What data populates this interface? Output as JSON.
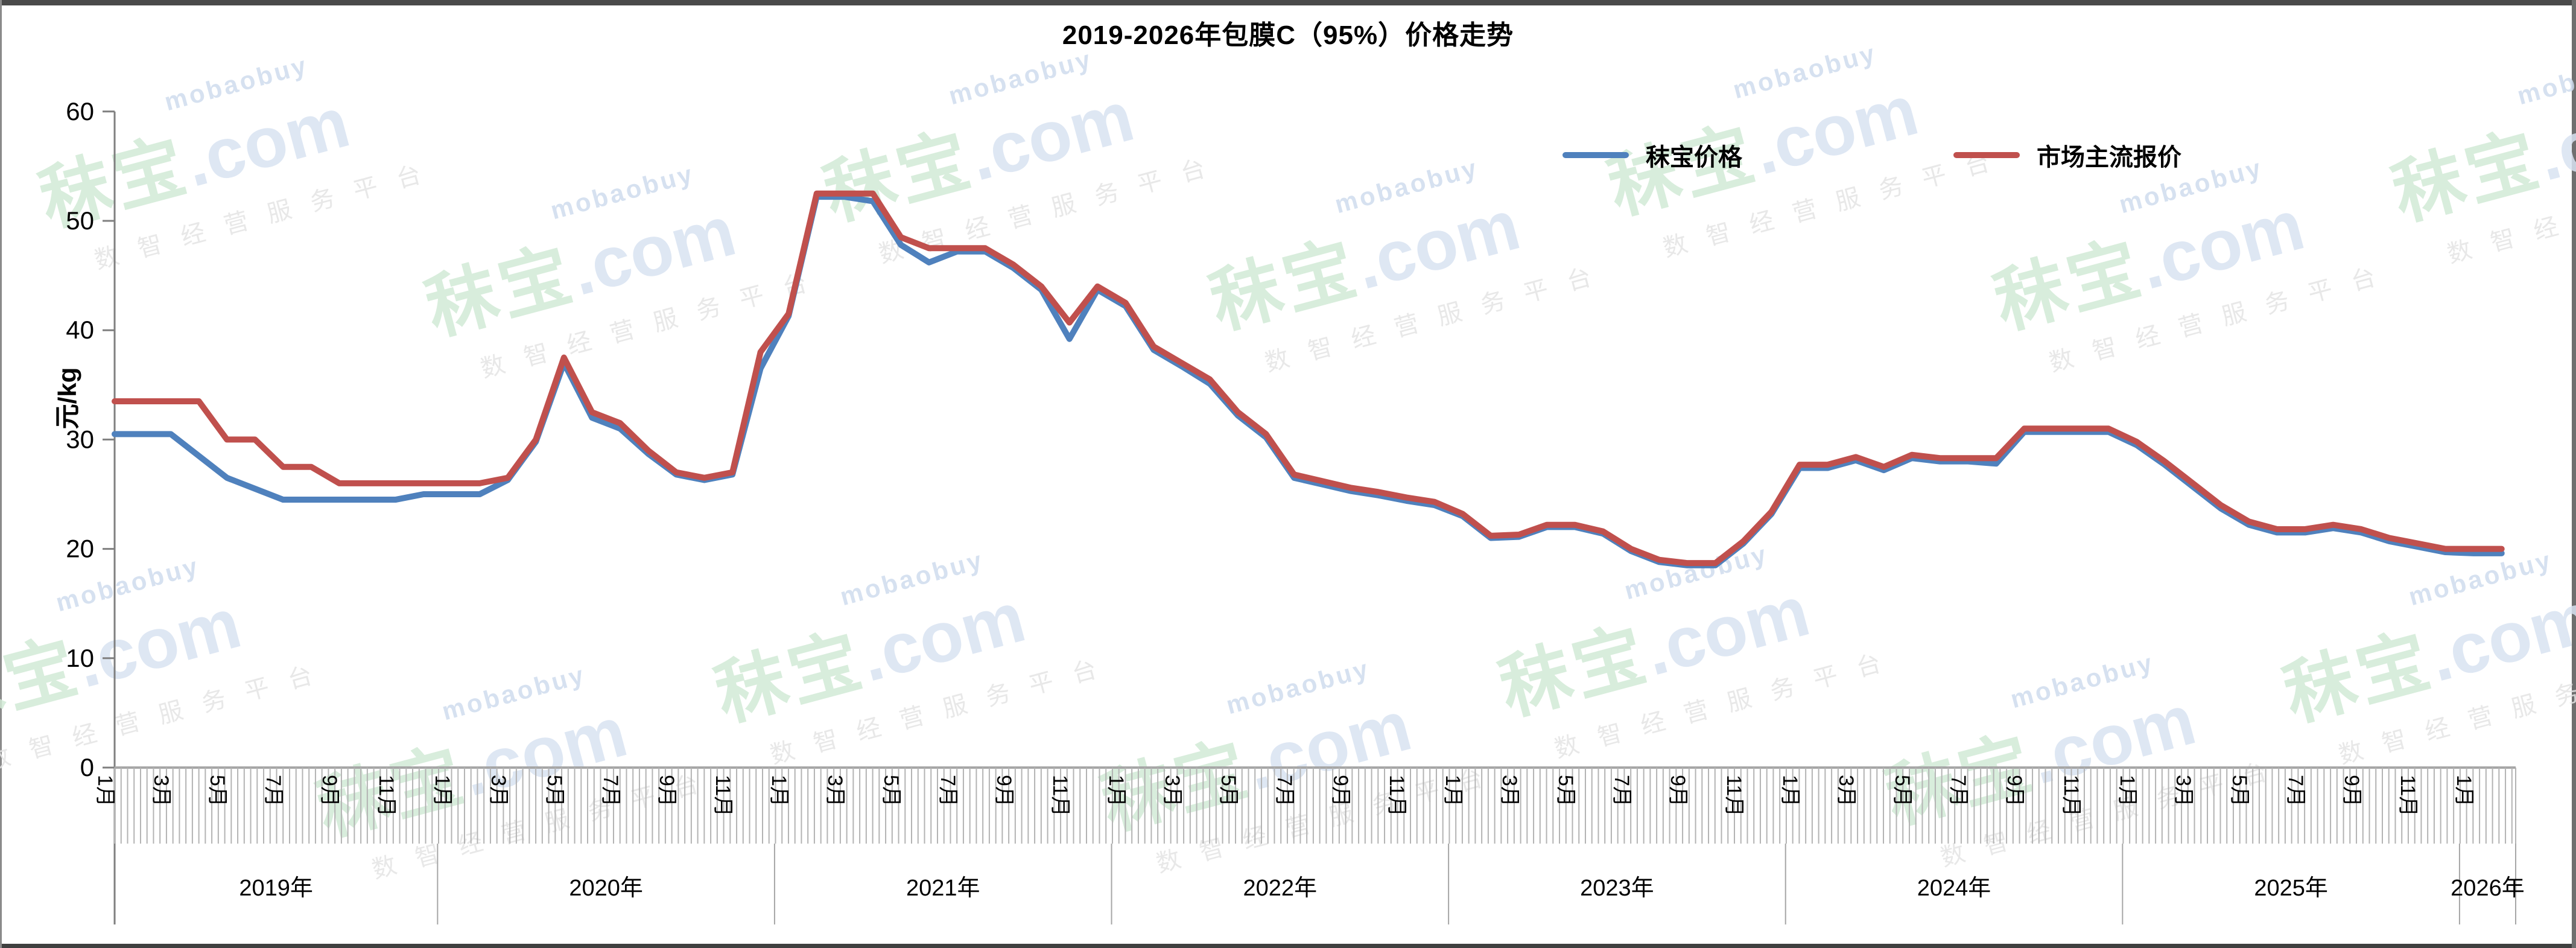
{
  "title": "2019-2026年包膜C（95%）价格走势",
  "y_axis": {
    "title": "元/kg",
    "ticks": [
      "0",
      "10",
      "20",
      "30",
      "40",
      "50",
      "60"
    ],
    "min": 0,
    "max": 60
  },
  "x_axis": {
    "month_tick_labels": [
      "1月",
      "3月",
      "5月",
      "7月",
      "9月",
      "11月"
    ],
    "final_tick_label": "1月",
    "year_labels": [
      "2019年",
      "2020年",
      "2021年",
      "2022年",
      "2023年",
      "2024年",
      "2025年",
      "2026年"
    ]
  },
  "legend": {
    "items": [
      {
        "label": "秣宝价格",
        "color": "#4F81BD"
      },
      {
        "label": "市场主流报价",
        "color": "#C0504D"
      }
    ]
  },
  "watermark": {
    "latin": "mobaobuy",
    "brand": "秣宝",
    "domain": ".com",
    "tagline": "数智经营服务平台"
  },
  "chart_data": {
    "type": "line",
    "x_start": "2019-01",
    "x_end": "2026-02",
    "x_frequency": "monthly",
    "ylim": [
      0,
      60
    ],
    "grid": false,
    "legend_position": "top-right",
    "series": [
      {
        "name": "秣宝价格",
        "color": "#4F81BD",
        "values": [
          30.5,
          30.5,
          30.5,
          28.5,
          26.5,
          25.5,
          24.5,
          24.5,
          24.5,
          24.5,
          24.5,
          25,
          25,
          25,
          26.3,
          29.8,
          37,
          32,
          31,
          28.7,
          26.8,
          26.3,
          26.8,
          36.5,
          41.3,
          52.2,
          52.2,
          51.8,
          47.8,
          46.2,
          47.2,
          47.2,
          45.7,
          43.7,
          39.2,
          43.7,
          42.2,
          38.2,
          36.7,
          35.1,
          32.2,
          30.2,
          26.5,
          25.9,
          25.3,
          24.9,
          24.4,
          24,
          23,
          21,
          21.1,
          22,
          22,
          21.4,
          19.8,
          18.8,
          18.5,
          18.5,
          20.5,
          23.2,
          27.4,
          27.4,
          28.1,
          27.2,
          28.3,
          28,
          28,
          27.8,
          30.7,
          30.7,
          30.7,
          30.7,
          29.5,
          27.7,
          25.7,
          23.7,
          22.2,
          21.5,
          21.5,
          21.9,
          21.5,
          20.7,
          20.2,
          19.7,
          19.6,
          19.6
        ]
      },
      {
        "name": "市场主流报价",
        "color": "#C0504D",
        "values": [
          33.5,
          33.5,
          33.5,
          33.5,
          30,
          30,
          27.5,
          27.5,
          26,
          26,
          26,
          26,
          26,
          26,
          26.5,
          30,
          37.5,
          32.5,
          31.5,
          29,
          27,
          26.5,
          27,
          38,
          41.5,
          52.5,
          52.5,
          52.5,
          48.5,
          47.5,
          47.5,
          47.5,
          46,
          44,
          40.7,
          44,
          42.5,
          38.5,
          37,
          35.5,
          32.5,
          30.5,
          26.8,
          26.2,
          25.6,
          25.2,
          24.7,
          24.3,
          23.2,
          21.2,
          21.3,
          22.2,
          22.2,
          21.6,
          20,
          19,
          18.7,
          18.7,
          20.7,
          23.4,
          27.7,
          27.7,
          28.4,
          27.5,
          28.6,
          28.3,
          28.3,
          28.3,
          31,
          31,
          31,
          31,
          29.8,
          28,
          26,
          24,
          22.5,
          21.8,
          21.8,
          22.2,
          21.8,
          21,
          20.5,
          20,
          20,
          20
        ]
      }
    ]
  }
}
